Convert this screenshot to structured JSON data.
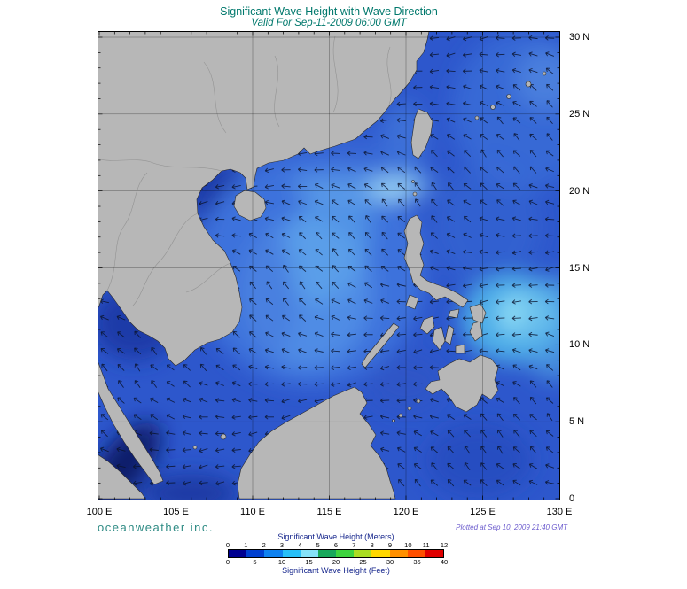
{
  "header": {
    "title": "Significant Wave Height with Wave Direction",
    "subtitle": "Valid For Sep-11-2009 06:00 GMT"
  },
  "axes": {
    "lon_labels": [
      "100 E",
      "105 E",
      "110 E",
      "115 E",
      "120 E",
      "125 E",
      "130 E"
    ],
    "lat_labels": [
      "30 N",
      "25 N",
      "20 N",
      "15 N",
      "10 N",
      "5 N",
      "0"
    ]
  },
  "footer": {
    "branding": "oceanweather inc.",
    "plotted": "Plotted at Sep 10, 2009 21:40 GMT"
  },
  "legend": {
    "meters_label": "Significant Wave Height (Meters)",
    "meters_ticks": [
      "0",
      "1",
      "2",
      "3",
      "4",
      "5",
      "6",
      "7",
      "8",
      "9",
      "10",
      "11",
      "12"
    ],
    "feet_label": "Significant Wave Height (Feet)",
    "feet_ticks": [
      "0",
      "5",
      "10",
      "15",
      "20",
      "25",
      "30",
      "35",
      "40"
    ],
    "colorbar_colors": [
      "#000090",
      "#0040d0",
      "#0f82f0",
      "#28c0f8",
      "#86e2f8",
      "#18a85a",
      "#3ed43e",
      "#aadd22",
      "#ffd800",
      "#ff9000",
      "#ff5000",
      "#e00000"
    ]
  },
  "map": {
    "colors": {
      "ocean_base": "#2d57cc",
      "calm_water": "#0b1b6a",
      "high_wave_patch": "#8fdef6",
      "land": "#b7b7b7",
      "arrow": "#0a142e",
      "title_text": "#00786c",
      "branding_text": "#2e8b84",
      "plotted_text": "#6a5acd",
      "legend_text": "#16268c"
    }
  }
}
